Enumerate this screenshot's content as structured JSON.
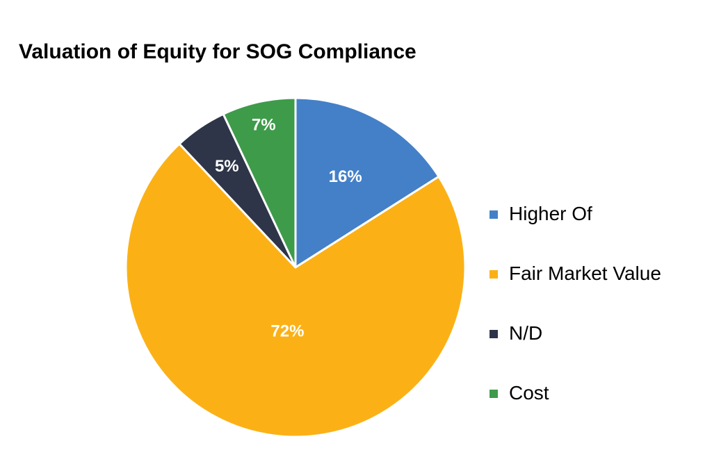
{
  "chart_data": {
    "type": "pie",
    "title": "Valuation of Equity for SOG Compliance",
    "slices": [
      {
        "name": "Higher Of",
        "value": 16,
        "label": "16%",
        "color": "#4480C8"
      },
      {
        "name": "Fair Market Value",
        "value": 72,
        "label": "72%",
        "color": "#FBB116"
      },
      {
        "name": "N/D",
        "value": 5,
        "label": "5%",
        "color": "#2E3548"
      },
      {
        "name": "Cost",
        "value": 7,
        "label": "7%",
        "color": "#3E9B4A"
      }
    ],
    "legend_position": "right",
    "start_angle": "12 o'clock",
    "direction": "clockwise"
  }
}
